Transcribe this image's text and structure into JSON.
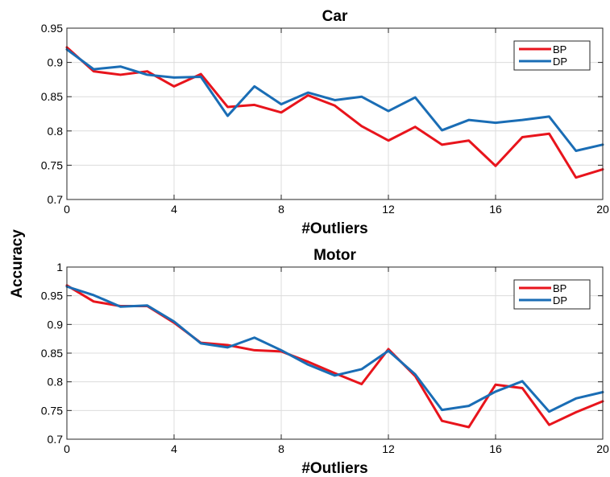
{
  "figure": {
    "ylabel": "Accuracy"
  },
  "chart_data": [
    {
      "type": "line",
      "title": "Car",
      "xlabel": "#Outliers",
      "ylabel": "",
      "xlim": [
        0,
        20
      ],
      "ylim": [
        0.7,
        0.95
      ],
      "xticks": [
        0,
        4,
        8,
        12,
        16,
        20
      ],
      "xtick_labels": [
        "0",
        "4",
        "8",
        "12",
        "16",
        "20"
      ],
      "yticks": [
        0.7,
        0.75,
        0.8,
        0.85,
        0.9,
        0.95
      ],
      "ytick_labels": [
        "0.7",
        "0.75",
        "0.8",
        "0.85",
        "0.9",
        "0.95"
      ],
      "grid": true,
      "legend_position": "top-right",
      "x": [
        0,
        1,
        2,
        3,
        4,
        5,
        6,
        7,
        8,
        9,
        10,
        11,
        12,
        13,
        14,
        15,
        16,
        17,
        18,
        19,
        20
      ],
      "series": [
        {
          "name": "BP",
          "color": "#e8141c",
          "values": [
            0.922,
            0.887,
            0.882,
            0.887,
            0.865,
            0.883,
            0.835,
            0.838,
            0.827,
            0.852,
            0.837,
            0.807,
            0.786,
            0.806,
            0.78,
            0.786,
            0.749,
            0.791,
            0.796,
            0.732,
            0.744
          ]
        },
        {
          "name": "DP",
          "color": "#1a6db5",
          "values": [
            0.919,
            0.89,
            0.894,
            0.882,
            0.878,
            0.879,
            0.822,
            0.865,
            0.839,
            0.856,
            0.845,
            0.85,
            0.829,
            0.849,
            0.801,
            0.816,
            0.812,
            0.816,
            0.821,
            0.771,
            0.78
          ]
        }
      ]
    },
    {
      "type": "line",
      "title": "Motor",
      "xlabel": "#Outliers",
      "ylabel": "",
      "xlim": [
        0,
        20
      ],
      "ylim": [
        0.7,
        1.0
      ],
      "xticks": [
        0,
        4,
        8,
        12,
        16,
        20
      ],
      "xtick_labels": [
        "0",
        "4",
        "8",
        "12",
        "16",
        "20"
      ],
      "yticks": [
        0.7,
        0.75,
        0.8,
        0.85,
        0.9,
        0.95,
        1.0
      ],
      "ytick_labels": [
        "0.7",
        "0.75",
        "0.8",
        "0.85",
        "0.9",
        "0.95",
        "1"
      ],
      "grid": true,
      "legend_position": "top-right",
      "x": [
        0,
        1,
        2,
        3,
        4,
        5,
        6,
        7,
        8,
        9,
        10,
        11,
        12,
        13,
        14,
        15,
        16,
        17,
        18,
        19,
        20
      ],
      "series": [
        {
          "name": "BP",
          "color": "#e8141c",
          "values": [
            0.968,
            0.94,
            0.932,
            0.932,
            0.903,
            0.868,
            0.864,
            0.855,
            0.853,
            0.835,
            0.815,
            0.796,
            0.857,
            0.81,
            0.732,
            0.721,
            0.795,
            0.789,
            0.725,
            0.747,
            0.766
          ]
        },
        {
          "name": "DP",
          "color": "#1a6db5",
          "values": [
            0.966,
            0.951,
            0.931,
            0.933,
            0.905,
            0.867,
            0.86,
            0.877,
            0.855,
            0.83,
            0.811,
            0.822,
            0.854,
            0.813,
            0.751,
            0.758,
            0.783,
            0.801,
            0.748,
            0.771,
            0.782
          ]
        }
      ]
    }
  ]
}
